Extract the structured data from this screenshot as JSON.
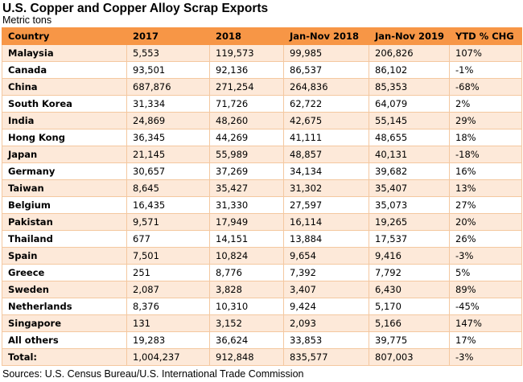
{
  "title": "U.S. Copper and Copper Alloy Scrap Exports",
  "subtitle": "Metric tons",
  "source": "Sources: U.S. Census Bureau/U.S. International Trade Commission",
  "colors": {
    "header_bg": "#f79646",
    "band_bg": "#fde9d9",
    "border": "#f4c8a0"
  },
  "table": {
    "headers": [
      "Country",
      "2017",
      "2018",
      "Jan-Nov 2018",
      "Jan-Nov 2019",
      "YTD % CHG"
    ],
    "rows": [
      [
        "Malaysia",
        "5,553",
        "119,573",
        "99,985",
        "206,826",
        "107%"
      ],
      [
        "Canada",
        "93,501",
        "92,136",
        "86,537",
        "86,102",
        "-1%"
      ],
      [
        "China",
        "687,876",
        "271,254",
        "264,836",
        "85,353",
        "-68%"
      ],
      [
        "South Korea",
        "31,334",
        "71,726",
        "62,722",
        "64,079",
        "2%"
      ],
      [
        "India",
        "24,869",
        "48,260",
        "42,675",
        "55,145",
        "29%"
      ],
      [
        "Hong Kong",
        "36,345",
        "44,269",
        "41,111",
        "48,655",
        "18%"
      ],
      [
        "Japan",
        "21,145",
        "55,989",
        "48,857",
        "40,131",
        "-18%"
      ],
      [
        "Germany",
        "30,657",
        "37,269",
        "34,134",
        "39,682",
        "16%"
      ],
      [
        "Taiwan",
        "8,645",
        "35,427",
        "31,302",
        "35,407",
        "13%"
      ],
      [
        "Belgium",
        "16,435",
        "31,330",
        "27,597",
        "35,073",
        "27%"
      ],
      [
        "Pakistan",
        "9,571",
        "17,949",
        "16,114",
        "19,265",
        "20%"
      ],
      [
        "Thailand",
        "677",
        "14,151",
        "13,884",
        "17,537",
        "26%"
      ],
      [
        "Spain",
        "7,501",
        "10,824",
        "9,654",
        "9,416",
        "-3%"
      ],
      [
        "Greece",
        "251",
        "8,776",
        "7,392",
        "7,792",
        "5%"
      ],
      [
        "Sweden",
        "2,087",
        "3,828",
        "3,407",
        "6,430",
        "89%"
      ],
      [
        "Netherlands",
        "8,376",
        "10,310",
        "9,424",
        "5,170",
        "-45%"
      ],
      [
        "Singapore",
        "131",
        "3,152",
        "2,093",
        "5,166",
        "147%"
      ],
      [
        "All others",
        "19,283",
        "36,624",
        "33,853",
        "39,775",
        "17%"
      ],
      [
        "Total:",
        "1,004,237",
        "912,848",
        "835,577",
        "807,003",
        "-3%"
      ]
    ]
  }
}
